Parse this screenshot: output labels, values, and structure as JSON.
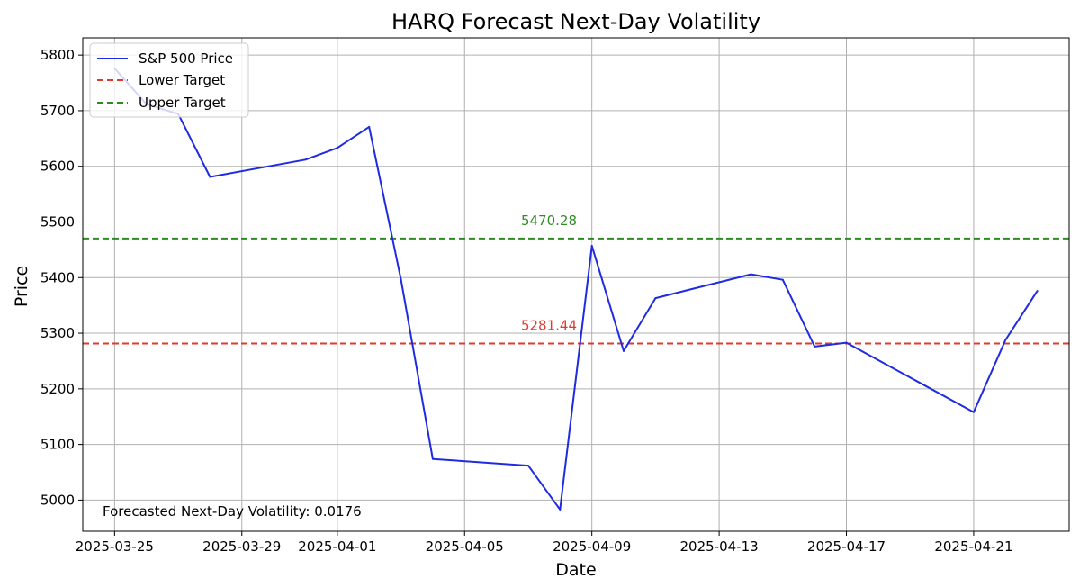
{
  "chart_data": {
    "type": "line",
    "title": "HARQ Forecast Next-Day Volatility",
    "xlabel": "Date",
    "ylabel": "Price",
    "x_ticks": [
      "2025-03-25",
      "2025-03-29",
      "2025-04-01",
      "2025-04-05",
      "2025-04-09",
      "2025-04-13",
      "2025-04-17",
      "2025-04-21"
    ],
    "y_ticks": [
      5000,
      5100,
      5200,
      5300,
      5400,
      5500,
      5600,
      5700,
      5800
    ],
    "xlim": [
      "2025-03-24",
      "2025-04-24"
    ],
    "ylim": [
      4944,
      5831
    ],
    "grid": true,
    "legend_position": "top-left",
    "series": [
      {
        "name": "S&P 500 Price",
        "color": "#1f2be0",
        "points": [
          {
            "x": "2025-03-25",
            "y": 5776
          },
          {
            "x": "2025-03-26",
            "y": 5712
          },
          {
            "x": "2025-03-27",
            "y": 5694
          },
          {
            "x": "2025-03-28",
            "y": 5581
          },
          {
            "x": "2025-03-31",
            "y": 5612
          },
          {
            "x": "2025-04-01",
            "y": 5633
          },
          {
            "x": "2025-04-02",
            "y": 5671
          },
          {
            "x": "2025-04-03",
            "y": 5397
          },
          {
            "x": "2025-04-04",
            "y": 5074
          },
          {
            "x": "2025-04-07",
            "y": 5062
          },
          {
            "x": "2025-04-08",
            "y": 4983
          },
          {
            "x": "2025-04-09",
            "y": 5457
          },
          {
            "x": "2025-04-10",
            "y": 5268
          },
          {
            "x": "2025-04-11",
            "y": 5363
          },
          {
            "x": "2025-04-14",
            "y": 5406
          },
          {
            "x": "2025-04-15",
            "y": 5396
          },
          {
            "x": "2025-04-16",
            "y": 5276
          },
          {
            "x": "2025-04-17",
            "y": 5283
          },
          {
            "x": "2025-04-21",
            "y": 5158
          },
          {
            "x": "2025-04-22",
            "y": 5288
          },
          {
            "x": "2025-04-23",
            "y": 5376
          }
        ]
      }
    ],
    "reference_lines": [
      {
        "name": "Lower Target",
        "value": 5281.44,
        "label": "5281.44",
        "color": "#e03a2f",
        "label_x": "2025-04-07"
      },
      {
        "name": "Upper Target",
        "value": 5470.28,
        "label": "5470.28",
        "color": "#2e8b22",
        "label_x": "2025-04-07"
      }
    ],
    "annotation": "Forecasted Next-Day Volatility: 0.0176"
  }
}
